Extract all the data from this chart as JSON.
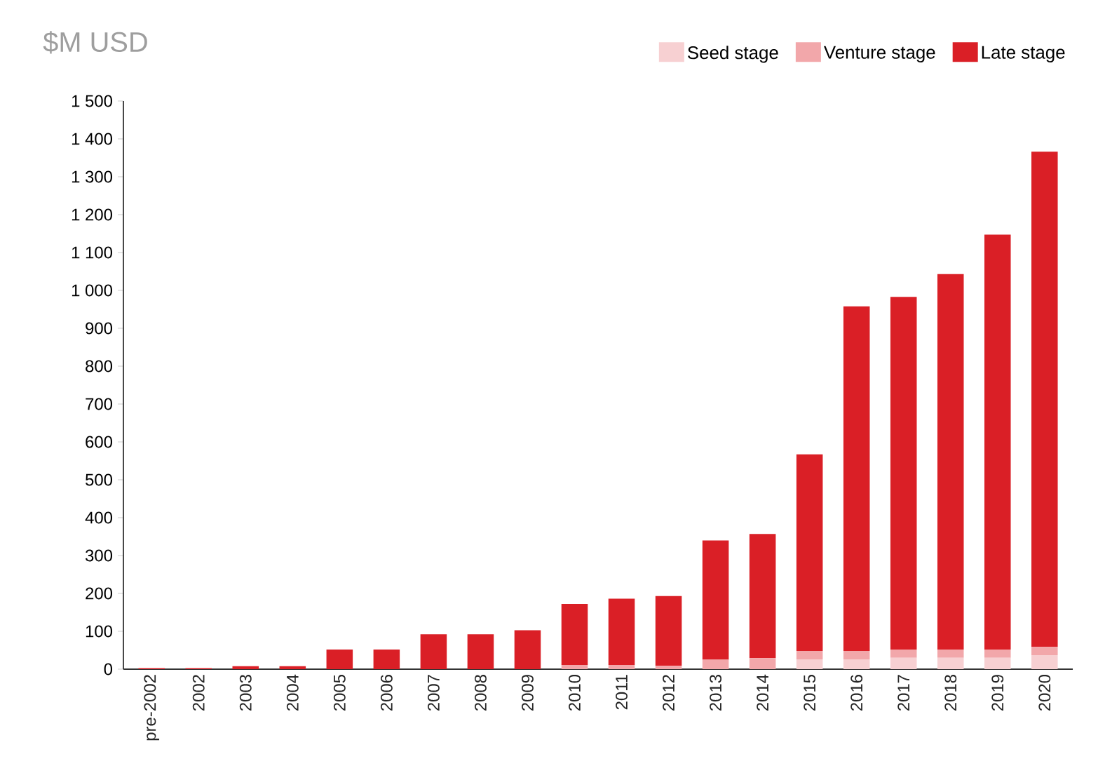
{
  "chart_data": {
    "type": "bar",
    "stacked": true,
    "title": "$M USD",
    "categories": [
      "pre-2002",
      "2002",
      "2003",
      "2004",
      "2005",
      "2006",
      "2007",
      "2008",
      "2009",
      "2010",
      "2011",
      "2012",
      "2013",
      "2014",
      "2015",
      "2016",
      "2017",
      "2018",
      "2019",
      "2020"
    ],
    "series": [
      {
        "name": "Seed stage",
        "color": "#f7d0d2",
        "values": [
          0,
          0,
          0,
          0,
          0,
          0,
          0,
          0,
          0,
          0,
          0,
          0,
          0,
          0,
          26,
          26,
          30,
          30,
          30,
          37
        ]
      },
      {
        "name": "Venture stage",
        "color": "#f2a7aa",
        "values": [
          0,
          0,
          0,
          0,
          0,
          0,
          0,
          0,
          0,
          11,
          11,
          9,
          25,
          29,
          22,
          22,
          22,
          22,
          22,
          22
        ]
      },
      {
        "name": "Late stage",
        "color": "#da1f26",
        "values": [
          3,
          3,
          8,
          8,
          52,
          52,
          92,
          92,
          103,
          161,
          175,
          184,
          315,
          328,
          519,
          910,
          931,
          991,
          1095,
          1307
        ]
      }
    ],
    "ylim": [
      0,
      1500
    ],
    "yticks": [
      0,
      100,
      200,
      300,
      400,
      500,
      600,
      700,
      800,
      900,
      {
        "value": 1000,
        "label": "1 000"
      },
      {
        "value": 1100,
        "label": "1 100"
      },
      {
        "value": 1200,
        "label": "1 200"
      },
      {
        "value": 1300,
        "label": "1 300"
      },
      {
        "value": 1400,
        "label": "1 400"
      },
      {
        "value": 1500,
        "label": "1 500"
      }
    ],
    "grid": false,
    "legend": "top right"
  }
}
